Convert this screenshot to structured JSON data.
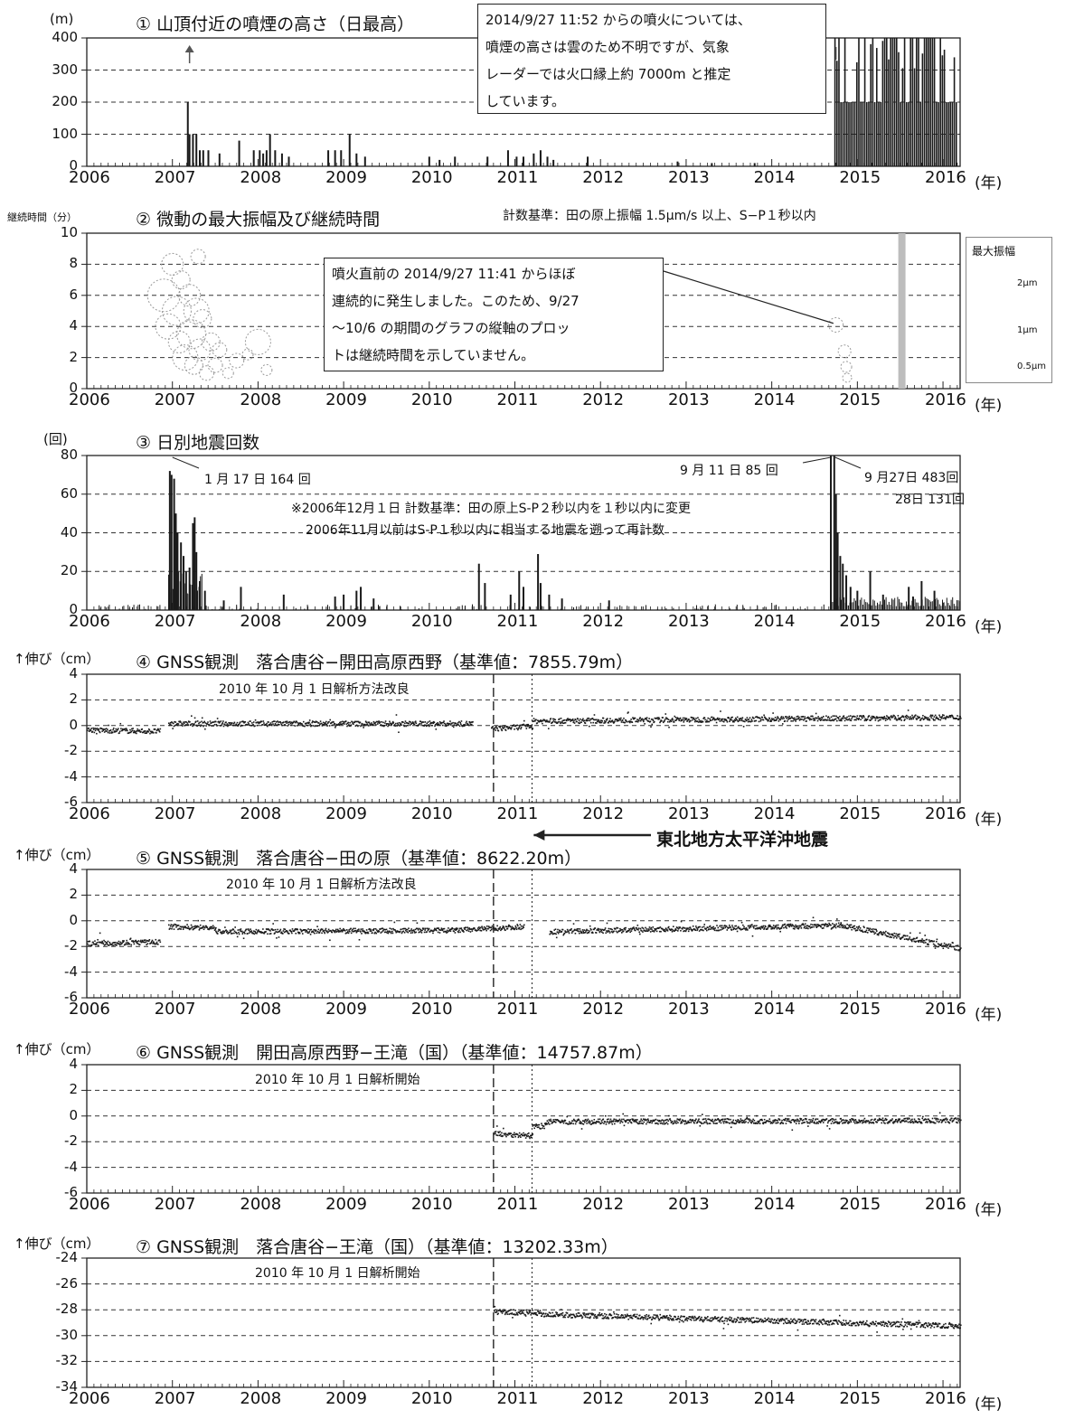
{
  "axis_year_unit": "(年)",
  "x_ticks": [
    "2006",
    "2007",
    "2008",
    "2009",
    "2010",
    "2011",
    "2012",
    "2013",
    "2014",
    "2015",
    "2016"
  ],
  "colors": {
    "ink": "#222222",
    "bar": "#1a1a1a",
    "grid": "#333333",
    "circle": "#9a9a9a",
    "band": "#bdbdbd"
  },
  "panels": [
    {
      "id": "p1",
      "title": "① 山頂付近の噴煙の高さ（日最高）",
      "y_unit": "(m)",
      "y_ticks": [
        "400",
        "300",
        "200",
        "100",
        "0"
      ],
      "callout": [
        "2014/9/27 11:52 からの噴火については、",
        "噴煙の高さは雲のため不明ですが、気象",
        "レーダーでは火口縁上約 7000m と推定",
        "しています。"
      ]
    },
    {
      "id": "p2",
      "title": "② 微動の最大振幅及び継続時間",
      "y_unit": "継続時間（分）",
      "y_ticks": [
        "10",
        "8",
        "6",
        "4",
        "2",
        "0"
      ],
      "criteria": "計数基準：田の原上振幅 1.5μm/s 以上、S−P１秒以内",
      "callout": [
        "噴火直前の 2014/9/27 11:41 からほぼ",
        "連続的に発生しました。このため、9/27",
        "〜10/6 の期間のグラフの縦軸のプロッ",
        "トは継続時間を示していません。"
      ],
      "legend": {
        "title": "最大振幅",
        "items": [
          "2μm",
          "1μm",
          "0.5μm"
        ]
      }
    },
    {
      "id": "p3",
      "title": "③ 日別地震回数",
      "y_unit": "(回)",
      "y_ticks": [
        "80",
        "60",
        "40",
        "20",
        "0"
      ],
      "ann_jan17": "1 月 17 日 164 回",
      "ann_sep11": "9 月 11 日 85 回",
      "ann_sep27": "9 月27日 483回",
      "ann_28": "28日 131回",
      "note1": "※2006年12月１日 計数基準：田の原上S-P２秒以内を１秒以内に変更",
      "note2": "2006年11月以前はS-P１秒以内に相当する地震を遡って再計数"
    },
    {
      "id": "p4",
      "title": "④ GNSS観測　落合唐谷−開田高原西野（基準値：7855.79m）",
      "y_unit": "↑伸び（cm）",
      "y_ticks": [
        "4",
        "2",
        "0",
        "-2",
        "-4",
        "-6"
      ],
      "method_note": "2010 年 10 月 1 日解析方法改良",
      "quake_label": "東北地方太平洋沖地震"
    },
    {
      "id": "p5",
      "title": "⑤ GNSS観測　落合唐谷−田の原（基準値：8622.20m）",
      "y_unit": "↑伸び（cm）",
      "y_ticks": [
        "4",
        "2",
        "0",
        "-2",
        "-4",
        "-6"
      ],
      "method_note": "2010 年 10 月 1 日解析方法改良"
    },
    {
      "id": "p6",
      "title": "⑥ GNSS観測　開田高原西野−王滝（国）（基準値：14757.87m）",
      "y_unit": "↑伸び（cm）",
      "y_ticks": [
        "4",
        "2",
        "0",
        "-2",
        "-4",
        "-6"
      ],
      "method_note": "2010 年 10 月 1 日解析開始"
    },
    {
      "id": "p7",
      "title": "⑦ GNSS観測　落合唐谷−王滝（国）（基準値：13202.33m）",
      "y_unit": "↑伸び（cm）",
      "y_ticks": [
        "-24",
        "-26",
        "-28",
        "-30",
        "-32",
        "-34"
      ],
      "method_note": "2010 年 10 月 1 日解析開始"
    }
  ],
  "chart_data": [
    {
      "type": "bar",
      "id": "p1",
      "ylim": [
        0,
        400
      ],
      "xlim": [
        2006,
        2016.2
      ],
      "points": [
        [
          2007.18,
          200
        ],
        [
          2007.2,
          100
        ],
        [
          2007.24,
          100
        ],
        [
          2007.28,
          100
        ],
        [
          2007.32,
          50
        ],
        [
          2007.36,
          50
        ],
        [
          2007.42,
          50
        ],
        [
          2007.55,
          40
        ],
        [
          2007.78,
          80
        ],
        [
          2007.95,
          50
        ],
        [
          2008.02,
          50
        ],
        [
          2008.06,
          40
        ],
        [
          2008.1,
          50
        ],
        [
          2008.14,
          100
        ],
        [
          2008.2,
          50
        ],
        [
          2008.28,
          40
        ],
        [
          2008.36,
          30
        ],
        [
          2008.82,
          50
        ],
        [
          2008.9,
          50
        ],
        [
          2008.97,
          50
        ],
        [
          2009.07,
          100
        ],
        [
          2009.15,
          40
        ],
        [
          2009.25,
          30
        ],
        [
          2010.0,
          30
        ],
        [
          2010.12,
          20
        ],
        [
          2010.3,
          30
        ],
        [
          2010.68,
          30
        ],
        [
          2010.92,
          50
        ],
        [
          2011.02,
          30
        ],
        [
          2011.1,
          30
        ],
        [
          2011.22,
          40
        ],
        [
          2011.3,
          50
        ],
        [
          2011.38,
          30
        ],
        [
          2011.45,
          20
        ],
        [
          2011.85,
          30
        ],
        [
          2012.9,
          15
        ],
        [
          2013.3,
          10
        ],
        [
          2013.8,
          10
        ]
      ],
      "block": {
        "x0": 2014.73,
        "x1": 2016.15,
        "y": 400
      }
    },
    {
      "type": "scatter",
      "id": "p2",
      "ylim": [
        0,
        10
      ],
      "xlim": [
        2006,
        2016.2
      ],
      "bubbles": [
        [
          2006.9,
          6,
          18
        ],
        [
          2006.95,
          4,
          14
        ],
        [
          2007.0,
          8,
          12
        ],
        [
          2007.05,
          5,
          16
        ],
        [
          2007.08,
          3,
          12
        ],
        [
          2007.1,
          7,
          10
        ],
        [
          2007.15,
          2,
          14
        ],
        [
          2007.2,
          6,
          12
        ],
        [
          2007.22,
          3.5,
          16
        ],
        [
          2007.25,
          1.5,
          10
        ],
        [
          2007.28,
          5,
          14
        ],
        [
          2007.3,
          8.5,
          8
        ],
        [
          2007.32,
          2.5,
          12
        ],
        [
          2007.35,
          4.5,
          10
        ],
        [
          2007.4,
          1,
          8
        ],
        [
          2007.45,
          3,
          10
        ],
        [
          2007.5,
          1.5,
          8
        ],
        [
          2007.55,
          2.5,
          8
        ],
        [
          2007.65,
          1,
          6
        ],
        [
          2007.75,
          1.8,
          8
        ],
        [
          2007.88,
          2.2,
          6
        ],
        [
          2008.0,
          3,
          14
        ],
        [
          2008.1,
          1.2,
          6
        ],
        [
          2014.75,
          4.1,
          8
        ],
        [
          2014.85,
          2.4,
          7
        ],
        [
          2014.87,
          1.4,
          6
        ],
        [
          2014.88,
          0.7,
          5
        ]
      ],
      "band": {
        "x": 2015.52
      },
      "legend_sizes": [
        22,
        11,
        5
      ]
    },
    {
      "type": "bar",
      "id": "p3",
      "ylim": [
        0,
        80
      ],
      "xlim": [
        2006,
        2016.2
      ],
      "spikes": [
        [
          2006.97,
          72
        ],
        [
          2006.99,
          70
        ],
        [
          2007.02,
          68
        ],
        [
          2007.04,
          50
        ],
        [
          2007.06,
          40
        ],
        [
          2007.1,
          35
        ],
        [
          2007.13,
          28
        ],
        [
          2007.16,
          20
        ],
        [
          2007.2,
          22
        ],
        [
          2007.24,
          45
        ],
        [
          2007.26,
          48
        ],
        [
          2007.28,
          30
        ],
        [
          2007.32,
          15
        ],
        [
          2007.38,
          10
        ],
        [
          2007.6,
          5
        ],
        [
          2007.8,
          12
        ],
        [
          2008.3,
          8
        ],
        [
          2008.9,
          7
        ],
        [
          2009.0,
          8
        ],
        [
          2009.15,
          10
        ],
        [
          2009.2,
          12
        ],
        [
          2009.35,
          6
        ],
        [
          2010.58,
          24
        ],
        [
          2010.65,
          14
        ],
        [
          2010.95,
          8
        ],
        [
          2011.05,
          20
        ],
        [
          2011.1,
          12
        ],
        [
          2011.27,
          29
        ],
        [
          2011.3,
          14
        ],
        [
          2011.4,
          8
        ],
        [
          2011.55,
          6
        ],
        [
          2012.1,
          5
        ],
        [
          2014.69,
          85
        ],
        [
          2014.73,
          80
        ],
        [
          2014.75,
          60
        ],
        [
          2014.77,
          40
        ],
        [
          2014.8,
          28
        ],
        [
          2014.83,
          24
        ],
        [
          2014.87,
          18
        ],
        [
          2014.92,
          12
        ],
        [
          2015.0,
          10
        ],
        [
          2015.15,
          20
        ],
        [
          2015.3,
          8
        ],
        [
          2015.6,
          12
        ],
        [
          2015.65,
          7
        ],
        [
          2015.75,
          15
        ],
        [
          2015.9,
          10
        ]
      ]
    },
    {
      "type": "scatter",
      "id": "p4",
      "ylim": [
        -6,
        4
      ],
      "xlim": [
        2006,
        2016.2
      ],
      "segments": [
        [
          2006.0,
          2006.85,
          -0.3,
          -0.4
        ],
        [
          2006.95,
          2010.5,
          0.2,
          0.2
        ],
        [
          2010.72,
          2011.2,
          -0.2,
          0.0
        ],
        [
          2011.2,
          2016.2,
          0.4,
          0.7
        ]
      ]
    },
    {
      "type": "scatter",
      "id": "p5",
      "ylim": [
        -6,
        4
      ],
      "xlim": [
        2006,
        2016.2
      ],
      "segments": [
        [
          2006.0,
          2006.85,
          -1.7,
          -1.6
        ],
        [
          2006.95,
          2007.5,
          -0.4,
          -0.5
        ],
        [
          2007.5,
          2010.3,
          -0.8,
          -0.7
        ],
        [
          2010.3,
          2011.1,
          -0.7,
          -0.4
        ],
        [
          2011.4,
          2014.8,
          -0.8,
          -0.3
        ],
        [
          2014.8,
          2016.2,
          -0.3,
          -2.1
        ]
      ]
    },
    {
      "type": "scatter",
      "id": "p6",
      "ylim": [
        -6,
        4
      ],
      "xlim": [
        2006,
        2016.2
      ],
      "segments": [
        [
          2010.75,
          2011.2,
          -1.3,
          -1.5
        ],
        [
          2011.2,
          2011.35,
          -0.8,
          -0.7
        ],
        [
          2011.35,
          2016.2,
          -0.4,
          -0.3
        ]
      ]
    },
    {
      "type": "scatter",
      "id": "p7",
      "ylim": [
        -34,
        -24
      ],
      "xlim": [
        2006,
        2016.2
      ],
      "segments": [
        [
          2010.75,
          2011.3,
          -28.1,
          -28.2
        ],
        [
          2011.3,
          2016.2,
          -28.3,
          -29.2
        ]
      ]
    }
  ]
}
